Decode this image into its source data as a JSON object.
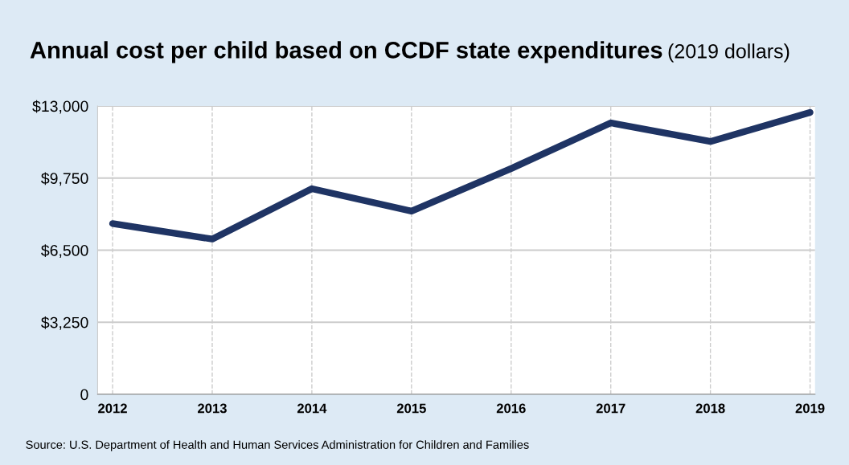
{
  "chart_data": {
    "type": "line",
    "title": "Annual cost per child based on CCDF state expenditures",
    "subtitle": "(2019 dollars)",
    "categories": [
      "2012",
      "2013",
      "2014",
      "2015",
      "2016",
      "2017",
      "2018",
      "2019"
    ],
    "series": [
      {
        "color": "#1f3464",
        "values": [
          7700,
          7000,
          9270,
          8260,
          10180,
          12240,
          11400,
          12710
        ]
      }
    ],
    "ylim": [
      0,
      13000
    ],
    "yticks": [
      {
        "value": 0,
        "label": "0"
      },
      {
        "value": 3250,
        "label": "$3,250"
      },
      {
        "value": 6500,
        "label": "$6,500"
      },
      {
        "value": 9750,
        "label": "$9,750"
      },
      {
        "value": 13000,
        "label": "$13,000"
      }
    ],
    "grid": true,
    "marker": "none",
    "line_style": "solid",
    "legend": false,
    "annotations": [
      "Source: U.S. Department of Health and Human Services Administration for Children and Families"
    ]
  }
}
